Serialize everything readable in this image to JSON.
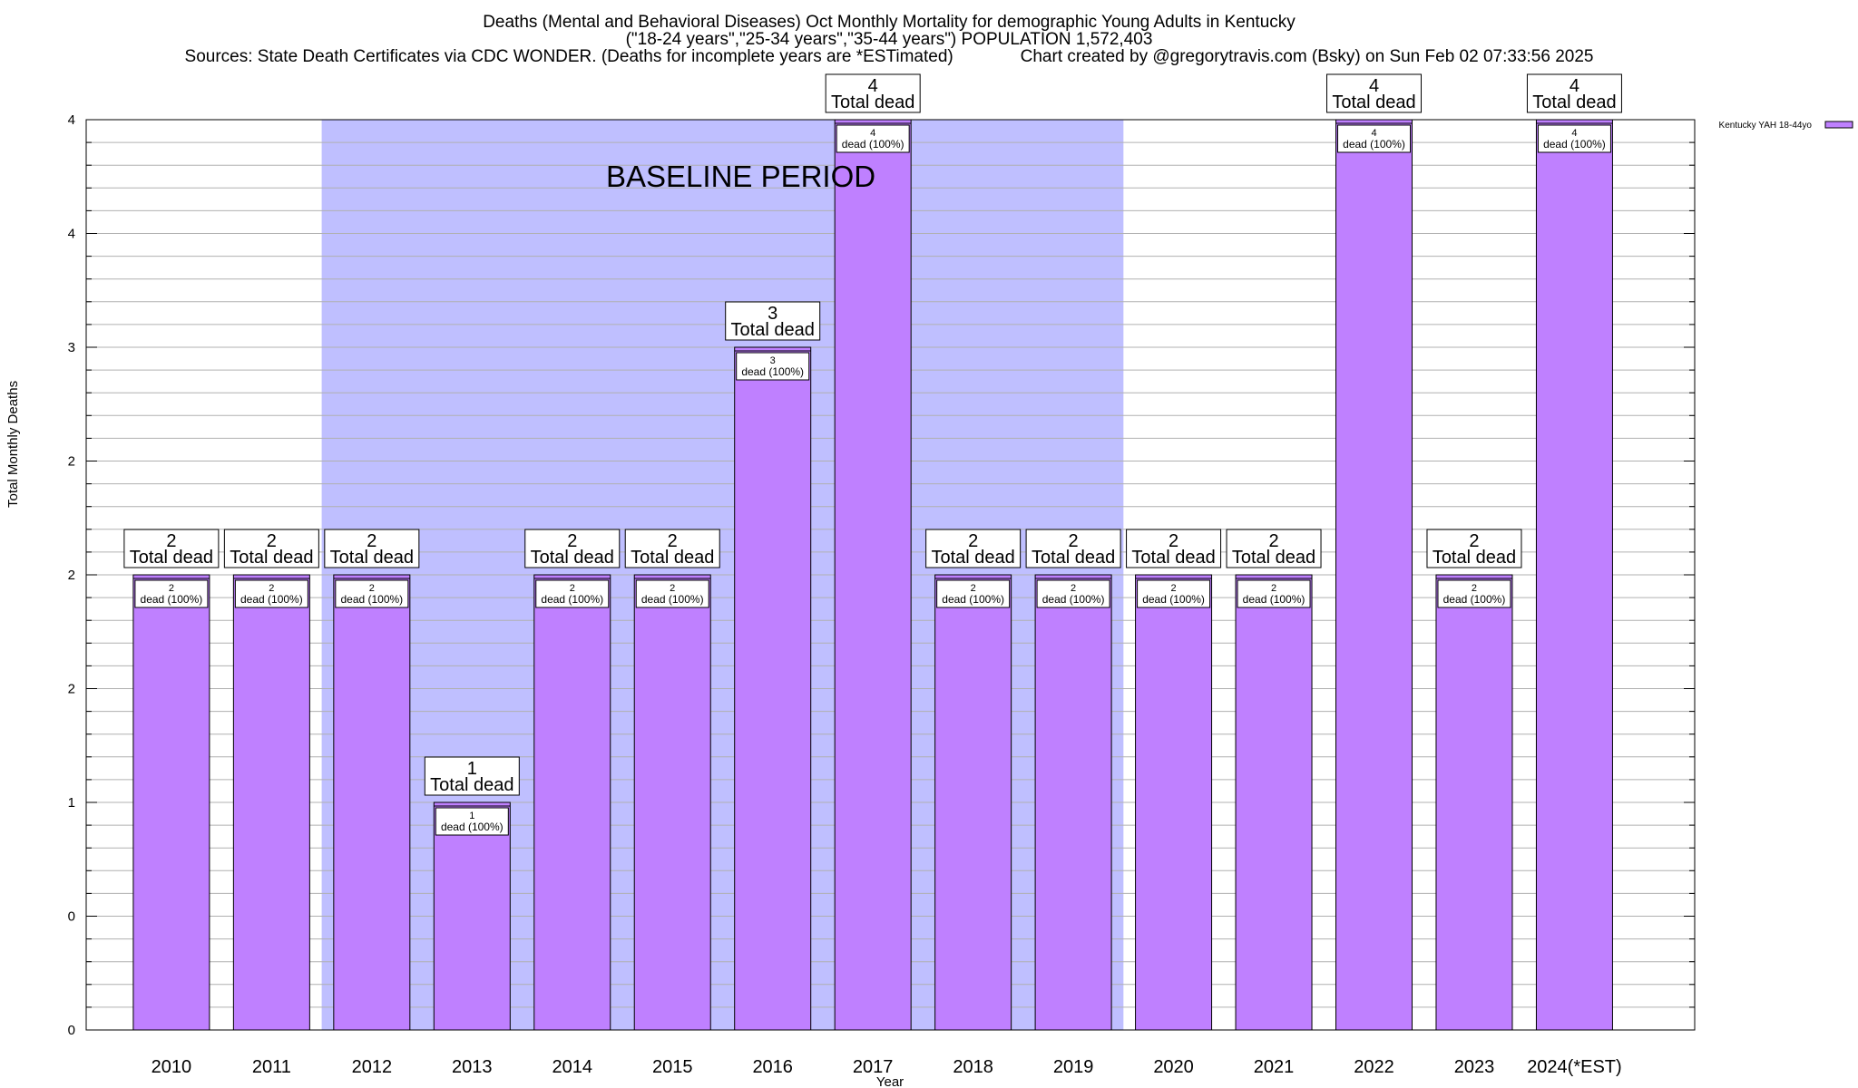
{
  "chart_data": {
    "type": "bar",
    "title_lines": [
      "Deaths (Mental and Behavioral Diseases) Oct Monthly Mortality for demographic Young Adults in Kentucky",
      "(\"18-24 years\",\"25-34 years\",\"35-44 years\") POPULATION 1,572,403",
      "Sources: State Death Certificates via CDC WONDER. (Deaths for incomplete years are *ESTimated)              Chart created by @gregorytravis.com (Bsky) on Sun Feb 02 07:33:56 2025"
    ],
    "xlabel": "Year",
    "ylabel": "Total Monthly Deaths",
    "categories": [
      "2010",
      "2011",
      "2012",
      "2013",
      "2014",
      "2015",
      "2016",
      "2017",
      "2018",
      "2019",
      "2020",
      "2021",
      "2022",
      "2023",
      "2024(*EST)"
    ],
    "series": [
      {
        "name": "Kentucky YAH 18-44yo",
        "values": [
          2,
          2,
          2,
          1,
          2,
          2,
          3,
          4,
          2,
          2,
          2,
          2,
          4,
          2,
          4
        ],
        "color": "#bf80ff"
      }
    ],
    "top_labels": {
      "numbers": [
        "2",
        "2",
        "2",
        "1",
        "2",
        "2",
        "3",
        "4",
        "2",
        "2",
        "2",
        "2",
        "4",
        "2",
        "4"
      ],
      "text": "Total dead"
    },
    "inner_labels": {
      "numbers": [
        "2",
        "2",
        "2",
        "1",
        "2",
        "2",
        "3",
        "4",
        "2",
        "2",
        "2",
        "2",
        "4",
        "2",
        "4"
      ],
      "text": "dead (100%)"
    },
    "y_tick_labels": [
      "0",
      "0",
      "1",
      "2",
      "2",
      "2",
      "3",
      "4",
      "4"
    ],
    "ylim": [
      0,
      4
    ],
    "grid": true,
    "legend_position": "top-right",
    "annotation": {
      "text": "BASELINE PERIOD",
      "x_start": "2012",
      "x_end": "2019",
      "color": "#bfbfff"
    }
  }
}
